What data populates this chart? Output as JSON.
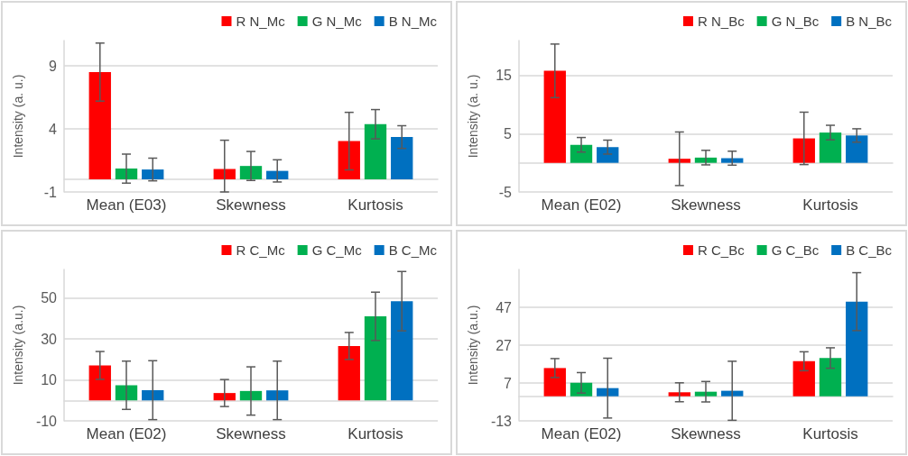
{
  "chart_data": [
    {
      "type": "bar",
      "ylabel": "Intensity (a. u.)",
      "categories": [
        "Mean (E03)",
        "Skewness",
        "Kurtosis"
      ],
      "ylim": [
        -1,
        11
      ],
      "yticks": [
        -1,
        4,
        9
      ],
      "grid": "y",
      "legend": "top right",
      "series": [
        {
          "name": "R N_Mc",
          "color": "#ff0000",
          "values": [
            8.5,
            0.82,
            3.03
          ],
          "errors": [
            2.3,
            [
              -1,
              3.1
            ],
            2.28
          ]
        },
        {
          "name": "G N_Mc",
          "color": "#00b050",
          "values": [
            0.85,
            1.06,
            4.37
          ],
          "errors": [
            1.15,
            1.15,
            1.16
          ]
        },
        {
          "name": "B N_Mc",
          "color": "#0070c0",
          "values": [
            0.78,
            0.67,
            3.35
          ],
          "errors": [
            0.9,
            0.88,
            0.9
          ]
        }
      ]
    },
    {
      "type": "bar",
      "ylabel": "Intensity (a. u.)",
      "categories": [
        "Mean (E02)",
        "Skewness",
        "Kurtosis"
      ],
      "ylim": [
        -5,
        21
      ],
      "yticks": [
        -5,
        5,
        15
      ],
      "grid": "y",
      "legend": "top right",
      "series": [
        {
          "name": "R N_Bc",
          "color": "#ff0000",
          "values": [
            15.8,
            0.7,
            4.2
          ],
          "errors": [
            4.6,
            4.6,
            4.5
          ]
        },
        {
          "name": "G N_Bc",
          "color": "#00b050",
          "values": [
            3.1,
            0.9,
            5.2
          ],
          "errors": [
            1.25,
            1.25,
            1.25
          ]
        },
        {
          "name": "B N_Bc",
          "color": "#0070c0",
          "values": [
            2.7,
            0.8,
            4.7
          ],
          "errors": [
            1.2,
            1.2,
            1.15
          ]
        }
      ]
    },
    {
      "type": "bar",
      "ylabel": "Intensity (a.u.)",
      "categories": [
        "Mean (E02)",
        "Skewness",
        "Kurtosis"
      ],
      "ylim": [
        -10,
        64
      ],
      "yticks": [
        -10,
        10,
        30,
        50
      ],
      "grid": "y",
      "legend": "top right",
      "series": [
        {
          "name": "R C_Mc",
          "color": "#ff0000",
          "values": [
            17.1,
            3.6,
            26.6
          ],
          "errors": [
            6.8,
            6.6,
            6.6
          ]
        },
        {
          "name": "G C_Mc",
          "color": "#00b050",
          "values": [
            7.4,
            4.6,
            41.1
          ],
          "errors": [
            11.8,
            11.8,
            11.8
          ]
        },
        {
          "name": "B C_Mc",
          "color": "#0070c0",
          "values": [
            5.0,
            4.9,
            48.5
          ],
          "errors": [
            14.4,
            14.3,
            14.5
          ]
        }
      ]
    },
    {
      "type": "bar",
      "ylabel": "Intensity (a.u.)",
      "categories": [
        "Mean (E02)",
        "Skewness",
        "Kurtosis"
      ],
      "ylim": [
        -13,
        67
      ],
      "yticks": [
        -13,
        7,
        27,
        47
      ],
      "grid": "y",
      "legend": "top right",
      "series": [
        {
          "name": "R C_Bc",
          "color": "#ff0000",
          "values": [
            14.9,
            2.1,
            18.5
          ],
          "errors": [
            5,
            5,
            5
          ]
        },
        {
          "name": "G C_Bc",
          "color": "#00b050",
          "values": [
            7.1,
            2.4,
            20.2
          ],
          "errors": [
            5.4,
            5.4,
            5.4
          ]
        },
        {
          "name": "B C_Bc",
          "color": "#0070c0",
          "values": [
            4.3,
            2.9,
            50.0
          ],
          "errors": [
            15.8,
            15.6,
            15.3
          ]
        }
      ]
    }
  ]
}
